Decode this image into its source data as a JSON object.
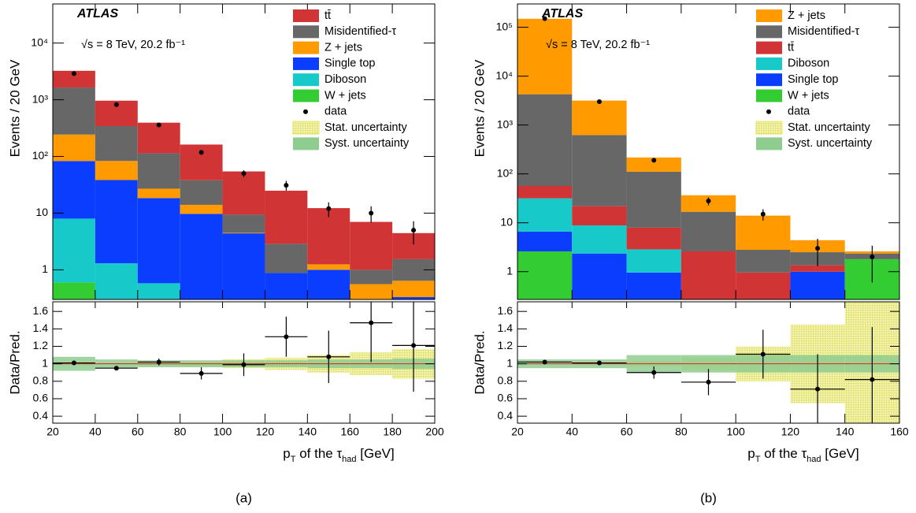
{
  "chart_data": [
    {
      "type": "stacked-histogram",
      "log_scale": true,
      "title": "ATLAS",
      "subtitle": "√s = 8 TeV, 20.2 fb⁻¹",
      "caption": "(a)",
      "y_label": "Events / 20 GeV",
      "x_label_parts": [
        "p",
        "T",
        " of the ",
        "τ",
        "had",
        " [GeV]"
      ],
      "bins": [
        20,
        40,
        60,
        80,
        100,
        120,
        140,
        160,
        180,
        200
      ],
      "xlim": [
        20,
        200
      ],
      "xticks": [
        20,
        40,
        60,
        80,
        100,
        120,
        140,
        160,
        180,
        200
      ],
      "ylim": [
        0.3,
        49000
      ],
      "yticks": [
        1,
        10,
        {
          "value": 100,
          "label": "10²"
        },
        {
          "value": 1000,
          "label": "10³"
        },
        {
          "value": 10000,
          "label": "10⁴"
        }
      ],
      "series": [
        {
          "name": "W + jets",
          "color": "#33cc33",
          "values": [
            0.6,
            0,
            0,
            0,
            0,
            0,
            0,
            0,
            0
          ]
        },
        {
          "name": "Diboson",
          "color": "#17c9c9",
          "values": [
            7.4,
            1.3,
            0.58,
            0,
            0,
            0,
            0,
            0,
            0
          ]
        },
        {
          "name": "Single top",
          "color": "#0b3dff",
          "values": [
            75,
            37,
            17.8,
            9.7,
            4.4,
            0.88,
            1.0,
            0,
            0.33
          ]
        },
        {
          "name": "Z + jets",
          "color": "#ff9a00",
          "values": [
            160,
            45,
            8.6,
            4.3,
            0.1,
            0,
            0.25,
            0.56,
            0.31
          ]
        },
        {
          "name": "Misidentified-τ",
          "color": "#676767",
          "values": [
            1400,
            260,
            87,
            24,
            4.9,
            2.0,
            0,
            0.44,
            0.9
          ]
        },
        {
          "name": "tt̄",
          "color": "#d03434",
          "values": [
            1600,
            620,
            280,
            124,
            45,
            22,
            11,
            6,
            2.9
          ]
        }
      ],
      "data": {
        "name": "data",
        "values": [
          2900,
          820,
          360,
          118,
          50,
          31,
          12,
          10,
          5
        ],
        "errors": [
          55,
          29,
          19,
          11,
          7,
          6,
          3.5,
          3.2,
          2.2
        ]
      },
      "ratio": {
        "y_label": "Data/Pred.",
        "ylim": [
          0.32,
          1.71
        ],
        "yticks": [
          0.4,
          0.6,
          0.8,
          1,
          1.2,
          1.4,
          1.6
        ],
        "values": [
          1.01,
          0.95,
          1.02,
          0.89,
          0.99,
          1.31,
          1.08,
          1.47,
          1.21
        ],
        "errors": [
          0.02,
          0.02,
          0.04,
          0.07,
          0.13,
          0.23,
          0.3,
          0.45,
          0.53
        ],
        "stat": {
          "name": "Stat. uncertainty",
          "color": "#e4e45a",
          "values": [
            0.01,
            0.01,
            0.02,
            0.03,
            0.05,
            0.07,
            0.1,
            0.13,
            0.17
          ]
        },
        "syst": {
          "name": "Syst. uncertainty",
          "color": "#8fcc8f",
          "values": [
            0.08,
            0.05,
            0.04,
            0.04,
            0.04,
            0.04,
            0.05,
            0.05,
            0.06
          ]
        }
      }
    },
    {
      "type": "stacked-histogram",
      "log_scale": true,
      "title": "ATLAS",
      "subtitle": "√s = 8 TeV, 20.2 fb⁻¹",
      "caption": "(b)",
      "y_label": "Events / 20 GeV",
      "x_label_parts": [
        "p",
        "T",
        " of the ",
        "τ",
        "had",
        " [GeV]"
      ],
      "bins": [
        20,
        40,
        60,
        80,
        100,
        120,
        140,
        160
      ],
      "xlim": [
        20,
        160
      ],
      "xticks": [
        20,
        40,
        60,
        80,
        100,
        120,
        140,
        160
      ],
      "ylim": [
        0.27,
        300000
      ],
      "yticks": [
        1,
        10,
        {
          "value": 100,
          "label": "10²"
        },
        {
          "value": 1000,
          "label": "10³"
        },
        {
          "value": 10000,
          "label": "10⁴"
        },
        {
          "value": 100000,
          "label": "10⁵"
        }
      ],
      "series": [
        {
          "name": "W + jets",
          "color": "#33cc33",
          "values": [
            2.6,
            0,
            0,
            0,
            0,
            0,
            1.8
          ]
        },
        {
          "name": "Single top",
          "color": "#0b3dff",
          "values": [
            4.0,
            2.35,
            0.96,
            0,
            0,
            1.0,
            0
          ]
        },
        {
          "name": "Diboson",
          "color": "#17c9c9",
          "values": [
            25,
            6.5,
            1.9,
            0,
            0,
            0,
            0
          ]
        },
        {
          "name": "tt̄",
          "color": "#d03434",
          "values": [
            25,
            13,
            5.1,
            2.6,
            0.96,
            0.35,
            0
          ]
        },
        {
          "name": "Misidentified-τ",
          "color": "#676767",
          "values": [
            4200,
            600,
            103,
            14.2,
            1.84,
            1.15,
            0.55
          ]
        },
        {
          "name": "Z + jets",
          "color": "#ff9a00",
          "values": [
            145000,
            2540,
            106,
            19.8,
            11.2,
            1.9,
            0.25
          ]
        }
      ],
      "data": {
        "name": "data",
        "values": [
          150000,
          3000,
          190,
          28,
          15,
          3,
          2
        ],
        "errors": [
          390,
          55,
          14,
          5.3,
          3.9,
          1.7,
          1.4
        ]
      },
      "ratio": {
        "y_label": "Data/Pred.",
        "ylim": [
          0.32,
          1.71
        ],
        "yticks": [
          0.4,
          0.6,
          0.8,
          1,
          1.2,
          1.4,
          1.6
        ],
        "values": [
          1.02,
          1.01,
          0.9,
          0.79,
          1.11,
          0.71,
          0.82
        ],
        "errors": [
          0.005,
          0.02,
          0.07,
          0.15,
          0.28,
          0.4,
          0.6
        ],
        "stat": {
          "name": "Stat. uncertainty",
          "color": "#e4e45a",
          "values": [
            0.005,
            0.01,
            0.03,
            0.07,
            0.2,
            0.45,
            0.8
          ]
        },
        "syst": {
          "name": "Syst. uncertainty",
          "color": "#8fcc8f",
          "values": [
            0.05,
            0.05,
            0.1,
            0.1,
            0.1,
            0.1,
            0.1
          ]
        }
      }
    }
  ]
}
